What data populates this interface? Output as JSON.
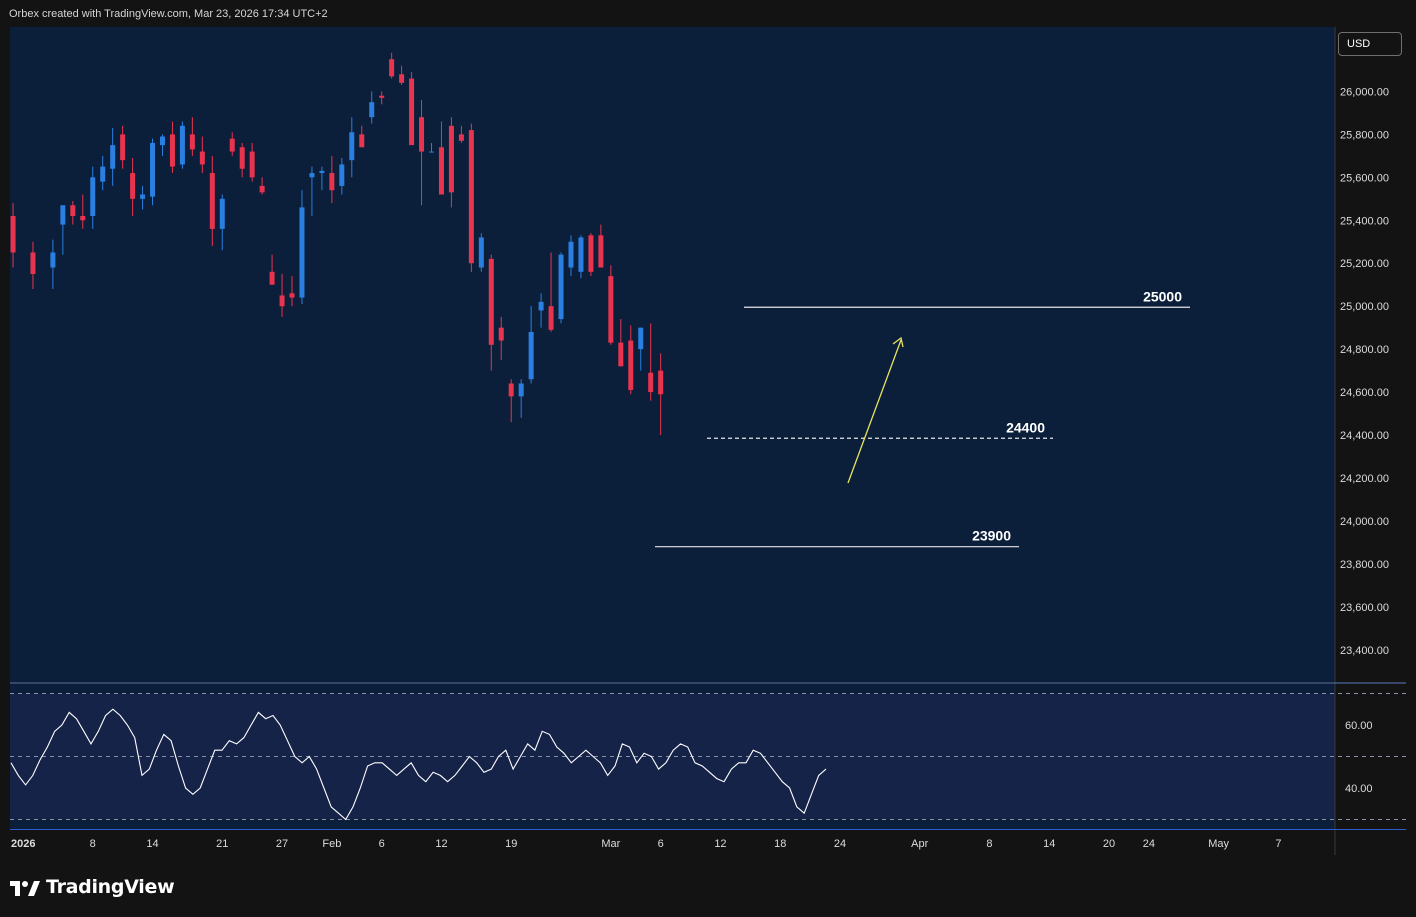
{
  "header": {
    "attribution": "Orbex created with TradingView.com, Mar 23, 2026 17:34 UTC+2"
  },
  "price_axis": {
    "currency": "USD"
  },
  "footer": {
    "brand": "TradingView"
  },
  "colors": {
    "background": "#131313",
    "plot_bg": "#0b1f3b",
    "indicator_bg": "#162349",
    "up": "#2a7fe0",
    "down": "#e8344e",
    "level_line": "#e6e6e6",
    "arrow": "#e8e35a",
    "rsi_line": "#ffffff",
    "axis_text": "#dcdcdc"
  },
  "chart_data": [
    {
      "type": "candlestick",
      "title": "",
      "ylim": [
        23250,
        26300
      ],
      "yticks": [
        "23,400.00",
        "23,600.00",
        "23,800.00",
        "24,000.00",
        "24,200.00",
        "24,400.00",
        "24,600.00",
        "24,800.00",
        "25,000.00",
        "25,200.00",
        "25,400.00",
        "25,600.00",
        "25,800.00",
        "26,000.00"
      ],
      "ytick_values": [
        23400,
        23600,
        23800,
        24000,
        24200,
        24400,
        24600,
        24800,
        25000,
        25200,
        25400,
        25600,
        25800,
        26000
      ],
      "x_ticks": [
        {
          "label": "2026",
          "date": "2026-01-01"
        },
        {
          "label": "8",
          "date": "2026-01-08"
        },
        {
          "label": "14",
          "date": "2026-01-14"
        },
        {
          "label": "21",
          "date": "2026-01-21"
        },
        {
          "label": "27",
          "date": "2026-01-27"
        },
        {
          "label": "Feb",
          "date": "2026-02-01"
        },
        {
          "label": "6",
          "date": "2026-02-06"
        },
        {
          "label": "12",
          "date": "2026-02-12"
        },
        {
          "label": "19",
          "date": "2026-02-19"
        },
        {
          "label": "Mar",
          "date": "2026-03-01"
        },
        {
          "label": "6",
          "date": "2026-03-06"
        },
        {
          "label": "12",
          "date": "2026-03-12"
        },
        {
          "label": "18",
          "date": "2026-03-18"
        },
        {
          "label": "24",
          "date": "2026-03-24"
        },
        {
          "label": "Apr",
          "date": "2026-04-01"
        },
        {
          "label": "8",
          "date": "2026-04-08"
        },
        {
          "label": "14",
          "date": "2026-04-14"
        },
        {
          "label": "20",
          "date": "2026-04-20"
        },
        {
          "label": "24",
          "date": "2026-04-24"
        },
        {
          "label": "May",
          "date": "2026-05-01"
        },
        {
          "label": "7",
          "date": "2026-05-07"
        }
      ],
      "candles": [
        {
          "d": "2025-12-31",
          "o": 25420,
          "h": 25480,
          "l": 25180,
          "c": 25250
        },
        {
          "d": "2026-01-02",
          "o": 25250,
          "h": 25300,
          "l": 25080,
          "c": 25150
        },
        {
          "d": "2026-01-04",
          "o": 25180,
          "h": 25310,
          "l": 25080,
          "c": 25250
        },
        {
          "d": "2026-01-05",
          "o": 25380,
          "h": 25460,
          "l": 25240,
          "c": 25470
        },
        {
          "d": "2026-01-06",
          "o": 25470,
          "h": 25490,
          "l": 25380,
          "c": 25420
        },
        {
          "d": "2026-01-07",
          "o": 25420,
          "h": 25520,
          "l": 25360,
          "c": 25400
        },
        {
          "d": "2026-01-08",
          "o": 25420,
          "h": 25650,
          "l": 25360,
          "c": 25600
        },
        {
          "d": "2026-01-09",
          "o": 25580,
          "h": 25700,
          "l": 25540,
          "c": 25650
        },
        {
          "d": "2026-01-10",
          "o": 25640,
          "h": 25830,
          "l": 25560,
          "c": 25750
        },
        {
          "d": "2026-01-11",
          "o": 25800,
          "h": 25840,
          "l": 25640,
          "c": 25680
        },
        {
          "d": "2026-01-12",
          "o": 25620,
          "h": 25690,
          "l": 25420,
          "c": 25500
        },
        {
          "d": "2026-01-13",
          "o": 25500,
          "h": 25560,
          "l": 25450,
          "c": 25520
        },
        {
          "d": "2026-01-14",
          "o": 25510,
          "h": 25780,
          "l": 25470,
          "c": 25760
        },
        {
          "d": "2026-01-15",
          "o": 25750,
          "h": 25800,
          "l": 25700,
          "c": 25790
        },
        {
          "d": "2026-01-16",
          "o": 25800,
          "h": 25860,
          "l": 25620,
          "c": 25650
        },
        {
          "d": "2026-01-17",
          "o": 25660,
          "h": 25860,
          "l": 25640,
          "c": 25840
        },
        {
          "d": "2026-01-18",
          "o": 25800,
          "h": 25880,
          "l": 25700,
          "c": 25730
        },
        {
          "d": "2026-01-19",
          "o": 25720,
          "h": 25790,
          "l": 25620,
          "c": 25660
        },
        {
          "d": "2026-01-20",
          "o": 25620,
          "h": 25700,
          "l": 25280,
          "c": 25360
        },
        {
          "d": "2026-01-21",
          "o": 25360,
          "h": 25520,
          "l": 25260,
          "c": 25500
        },
        {
          "d": "2026-01-22",
          "o": 25780,
          "h": 25810,
          "l": 25700,
          "c": 25720
        },
        {
          "d": "2026-01-23",
          "o": 25740,
          "h": 25760,
          "l": 25600,
          "c": 25640
        },
        {
          "d": "2026-01-24",
          "o": 25720,
          "h": 25760,
          "l": 25580,
          "c": 25600
        },
        {
          "d": "2026-01-25",
          "o": 25560,
          "h": 25600,
          "l": 25520,
          "c": 25530
        },
        {
          "d": "2026-01-26",
          "o": 25160,
          "h": 25240,
          "l": 25100,
          "c": 25100
        },
        {
          "d": "2026-01-27",
          "o": 25050,
          "h": 25150,
          "l": 24950,
          "c": 25000
        },
        {
          "d": "2026-01-28",
          "o": 25060,
          "h": 25140,
          "l": 25000,
          "c": 25040
        },
        {
          "d": "2026-01-29",
          "o": 25040,
          "h": 25540,
          "l": 25010,
          "c": 25460
        },
        {
          "d": "2026-01-30",
          "o": 25600,
          "h": 25650,
          "l": 25420,
          "c": 25620
        },
        {
          "d": "2026-01-31",
          "o": 25620,
          "h": 25650,
          "l": 25540,
          "c": 25630
        },
        {
          "d": "2026-02-01",
          "o": 25620,
          "h": 25700,
          "l": 25480,
          "c": 25540
        },
        {
          "d": "2026-02-02",
          "o": 25560,
          "h": 25690,
          "l": 25520,
          "c": 25660
        },
        {
          "d": "2026-02-03",
          "o": 25680,
          "h": 25880,
          "l": 25600,
          "c": 25810
        },
        {
          "d": "2026-02-04",
          "o": 25800,
          "h": 25840,
          "l": 25740,
          "c": 25740
        },
        {
          "d": "2026-02-05",
          "o": 25880,
          "h": 26000,
          "l": 25850,
          "c": 25950
        },
        {
          "d": "2026-02-06",
          "o": 25980,
          "h": 26000,
          "l": 25940,
          "c": 25970
        },
        {
          "d": "2026-02-07",
          "o": 26150,
          "h": 26180,
          "l": 26060,
          "c": 26070
        },
        {
          "d": "2026-02-08",
          "o": 26080,
          "h": 26120,
          "l": 26030,
          "c": 26040
        },
        {
          "d": "2026-02-09",
          "o": 26060,
          "h": 26090,
          "l": 25760,
          "c": 25750
        },
        {
          "d": "2026-02-10",
          "o": 25880,
          "h": 25960,
          "l": 25470,
          "c": 25720
        },
        {
          "d": "2026-02-11",
          "o": 25720,
          "h": 25760,
          "l": 25720,
          "c": 25720
        },
        {
          "d": "2026-02-12",
          "o": 25740,
          "h": 25860,
          "l": 25520,
          "c": 25520
        },
        {
          "d": "2026-02-13",
          "o": 25840,
          "h": 25880,
          "l": 25460,
          "c": 25530
        },
        {
          "d": "2026-02-14",
          "o": 25800,
          "h": 25840,
          "l": 25760,
          "c": 25770
        },
        {
          "d": "2026-02-15",
          "o": 25820,
          "h": 25850,
          "l": 25160,
          "c": 25200
        },
        {
          "d": "2026-02-16",
          "o": 25180,
          "h": 25340,
          "l": 25160,
          "c": 25320
        },
        {
          "d": "2026-02-17",
          "o": 25220,
          "h": 25240,
          "l": 24700,
          "c": 24820
        },
        {
          "d": "2026-02-18",
          "o": 24900,
          "h": 24950,
          "l": 24750,
          "c": 24840
        },
        {
          "d": "2026-02-19",
          "o": 24640,
          "h": 24660,
          "l": 24460,
          "c": 24580
        },
        {
          "d": "2026-02-20",
          "o": 24580,
          "h": 24660,
          "l": 24480,
          "c": 24640
        },
        {
          "d": "2026-02-21",
          "o": 24660,
          "h": 25000,
          "l": 24640,
          "c": 24880
        },
        {
          "d": "2026-02-22",
          "o": 24980,
          "h": 25060,
          "l": 24900,
          "c": 25020
        },
        {
          "d": "2026-02-23",
          "o": 25000,
          "h": 25250,
          "l": 24880,
          "c": 24890
        },
        {
          "d": "2026-02-24",
          "o": 24940,
          "h": 25250,
          "l": 24920,
          "c": 25240
        },
        {
          "d": "2026-02-25",
          "o": 25180,
          "h": 25330,
          "l": 25140,
          "c": 25300
        },
        {
          "d": "2026-02-26",
          "o": 25160,
          "h": 25330,
          "l": 25130,
          "c": 25320
        },
        {
          "d": "2026-02-27",
          "o": 25330,
          "h": 25340,
          "l": 25140,
          "c": 25160
        },
        {
          "d": "2026-02-28",
          "o": 25330,
          "h": 25380,
          "l": 25180,
          "c": 25180
        },
        {
          "d": "2026-03-01",
          "o": 25140,
          "h": 25190,
          "l": 24820,
          "c": 24830
        },
        {
          "d": "2026-03-02",
          "o": 24830,
          "h": 24940,
          "l": 24720,
          "c": 24720
        },
        {
          "d": "2026-03-03",
          "o": 24840,
          "h": 24910,
          "l": 24590,
          "c": 24610
        },
        {
          "d": "2026-03-04",
          "o": 24800,
          "h": 24900,
          "l": 24700,
          "c": 24900
        },
        {
          "d": "2026-03-05",
          "o": 24690,
          "h": 24920,
          "l": 24560,
          "c": 24600
        },
        {
          "d": "2026-03-06",
          "o": 24700,
          "h": 24780,
          "l": 24400,
          "c": 24590
        }
      ],
      "levels": [
        {
          "label": "25000",
          "value": 24995,
          "style": "solid"
        },
        {
          "label": "24400",
          "value": 24385,
          "style": "dashed"
        },
        {
          "label": "23900",
          "value": 23880,
          "style": "solid"
        }
      ]
    },
    {
      "type": "line",
      "title": "",
      "ylim": [
        27,
        73
      ],
      "yticks": [
        "40.00",
        "60.00"
      ],
      "ytick_values": [
        40,
        60
      ],
      "bands": [
        70,
        50,
        30
      ],
      "values": [
        48,
        44,
        41,
        44,
        49,
        53,
        58,
        60,
        64,
        62,
        58,
        54,
        58,
        63,
        65,
        63,
        60,
        56,
        44,
        46,
        52,
        57,
        55,
        47,
        40,
        38,
        40,
        46,
        52,
        52,
        55,
        54,
        56,
        60,
        64,
        62,
        63,
        60,
        55,
        50,
        48,
        50,
        46,
        40,
        34,
        32,
        30,
        34,
        40,
        47,
        48,
        48,
        46,
        44,
        46,
        48,
        44,
        42,
        45,
        44,
        42,
        44,
        47,
        50,
        48,
        45,
        46,
        50,
        52,
        46,
        50,
        54,
        52,
        58,
        57,
        53,
        51,
        48,
        50,
        52,
        50,
        48,
        44,
        47,
        54,
        53,
        48,
        51,
        50,
        46,
        48,
        52,
        54,
        53,
        48,
        47,
        45,
        43,
        42,
        46,
        48,
        48,
        52,
        51,
        48,
        45,
        42,
        40,
        34,
        32,
        38,
        44,
        46
      ]
    }
  ]
}
